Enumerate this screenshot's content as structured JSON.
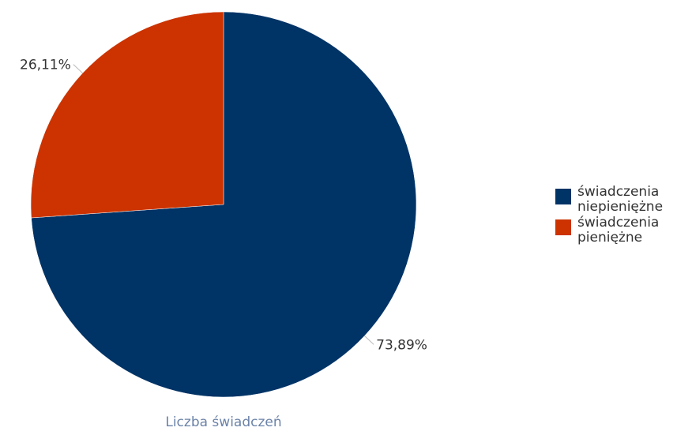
{
  "chart_data": {
    "type": "pie",
    "xlabel": "Liczba świadczeń",
    "slices": [
      {
        "name": "świadczenia niepieniężne",
        "name_lines": [
          "świadczenia",
          "niepieniężne"
        ],
        "value": 73.89,
        "label": "73,89%",
        "color": "#003366"
      },
      {
        "name": "świadczenia pieniężne",
        "name_lines": [
          "świadczenia",
          "pieniężne"
        ],
        "value": 26.11,
        "label": "26,11%",
        "color": "#cc3300"
      }
    ],
    "legend_position": "right"
  }
}
